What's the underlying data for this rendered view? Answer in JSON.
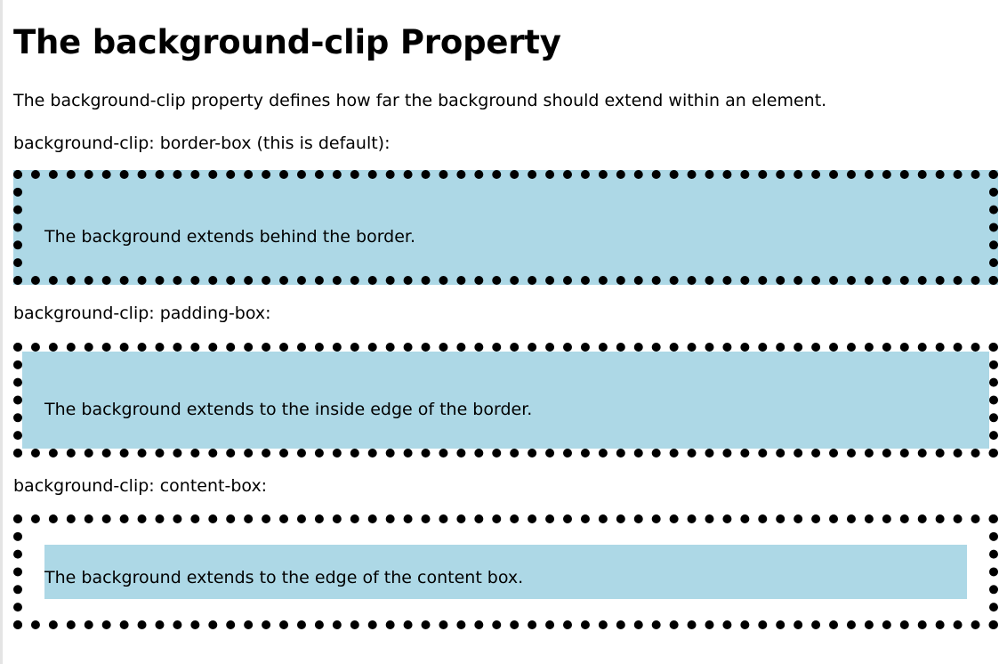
{
  "heading": "The background-clip Property",
  "intro": "The background-clip property defines how far the background should extend within an element.",
  "sections": [
    {
      "label": "background-clip: border-box (this is default):",
      "box_text": "The background extends behind the border."
    },
    {
      "label": "background-clip: padding-box:",
      "box_text": "The background extends to the inside edge of the border."
    },
    {
      "label": "background-clip: content-box:",
      "box_text": "The background extends to the edge of the content box."
    }
  ],
  "colors": {
    "box_background": "#add8e6",
    "border": "#000000"
  }
}
